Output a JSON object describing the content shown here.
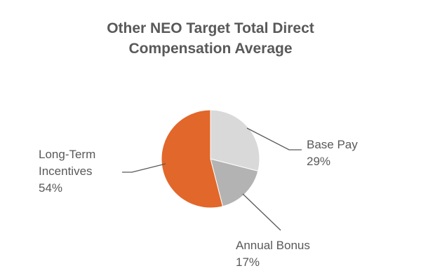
{
  "chart_data": {
    "type": "pie",
    "title_lines": [
      "Other NEO Target Total Direct",
      "Compensation Average"
    ],
    "slices": [
      {
        "label_lines": [
          "Base Pay"
        ],
        "percent_label": "29%",
        "value": 29,
        "color": "#d9d9d9"
      },
      {
        "label_lines": [
          "Annual Bonus"
        ],
        "percent_label": "17%",
        "value": 17,
        "color": "#b3b3b3"
      },
      {
        "label_lines": [
          "Long-Term",
          "Incentives"
        ],
        "percent_label": "54%",
        "value": 54,
        "color": "#e2672a"
      }
    ],
    "start_angle": "12 o'clock",
    "direction": "clockwise",
    "legend": "none (callout labels)"
  }
}
